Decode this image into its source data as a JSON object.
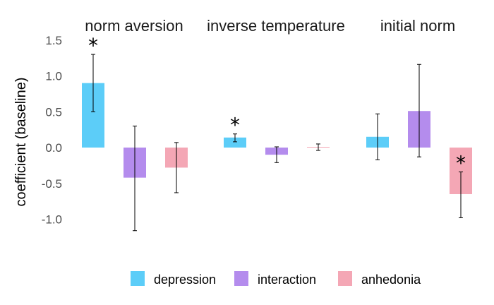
{
  "chart_data": {
    "type": "bar",
    "ylabel": "coefficient (baseline)",
    "ylim": [
      -1.25,
      1.6
    ],
    "yticks": [
      "1.5",
      "1.0",
      "0.5",
      "0.0",
      "-0.5",
      "-1.0"
    ],
    "ytick_values": [
      1.5,
      1.0,
      0.5,
      0.0,
      -0.5,
      -1.0
    ],
    "grid": false,
    "legend_position": "bottom",
    "series_colors": {
      "depression": "#5ccdf8",
      "interaction": "#b48ced",
      "anhedonia": "#f4a7b5"
    },
    "legend": [
      {
        "name": "depression",
        "color": "#5ccdf8"
      },
      {
        "name": "interaction",
        "color": "#b48ced"
      },
      {
        "name": "anhedonia",
        "color": "#f4a7b5"
      }
    ],
    "panels": [
      {
        "title": "norm aversion",
        "bars": [
          {
            "series": "depression",
            "value": 0.9,
            "ci": [
              0.5,
              1.3
            ],
            "significant": true
          },
          {
            "series": "interaction",
            "value": -0.42,
            "ci": [
              -1.16,
              0.3
            ],
            "significant": false
          },
          {
            "series": "anhedonia",
            "value": -0.28,
            "ci": [
              -0.63,
              0.07
            ],
            "significant": false
          }
        ]
      },
      {
        "title": "inverse temperature",
        "bars": [
          {
            "series": "depression",
            "value": 0.14,
            "ci": [
              0.08,
              0.19
            ],
            "significant": true
          },
          {
            "series": "interaction",
            "value": -0.1,
            "ci": [
              -0.21,
              0.01
            ],
            "significant": false
          },
          {
            "series": "anhedonia",
            "value": 0.01,
            "ci": [
              -0.04,
              0.05
            ],
            "significant": false
          }
        ]
      },
      {
        "title": "initial norm",
        "bars": [
          {
            "series": "depression",
            "value": 0.15,
            "ci": [
              -0.17,
              0.47
            ],
            "significant": false
          },
          {
            "series": "interaction",
            "value": 0.51,
            "ci": [
              -0.13,
              1.16
            ],
            "significant": false
          },
          {
            "series": "anhedonia",
            "value": -0.65,
            "ci": [
              -0.98,
              -0.34
            ],
            "significant": true
          }
        ]
      }
    ],
    "significance_symbol": "*"
  }
}
